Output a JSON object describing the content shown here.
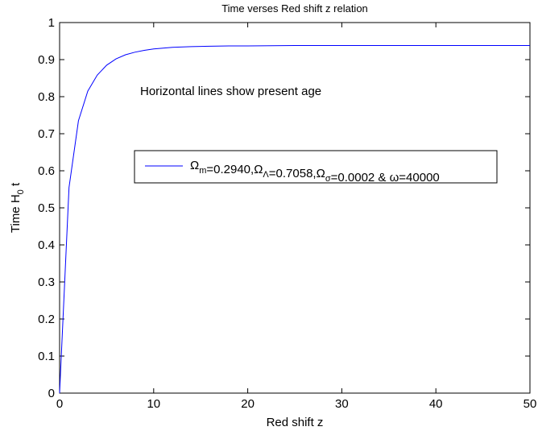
{
  "chart_data": {
    "type": "line",
    "title": "Time verses Red shift z relation",
    "xlabel": "Red shift z",
    "ylabel": {
      "main": "Time H",
      "sub": "0",
      "tail": " t"
    },
    "xlim": [
      0,
      50
    ],
    "ylim": [
      0,
      1
    ],
    "xticks": [
      0,
      10,
      20,
      30,
      40,
      50
    ],
    "xtick_labels": [
      "0",
      "10",
      "20",
      "30",
      "40",
      "50"
    ],
    "yticks": [
      0,
      0.1,
      0.2,
      0.3,
      0.4,
      0.5,
      0.6,
      0.7,
      0.8,
      0.9,
      1
    ],
    "ytick_labels": [
      "0",
      "0.1",
      "0.2",
      "0.3",
      "0.4",
      "0.5",
      "0.6",
      "0.7",
      "0.8",
      "0.9",
      "1"
    ],
    "grid": false,
    "annotation": "Horizontal lines show present age",
    "legend": {
      "placement": "center-right",
      "entries": [
        {
          "parts": [
            {
              "t": "Ω"
            },
            {
              "t": "m",
              "sub": true
            },
            {
              "t": "=0.2940,"
            },
            {
              "t": "Ω"
            },
            {
              "t": "Λ",
              "sub": true
            },
            {
              "t": "=0.7058,"
            },
            {
              "t": "Ω"
            },
            {
              "t": "σ",
              "sub": true
            },
            {
              "t": "=0.0002 & ω=40000"
            }
          ]
        }
      ]
    },
    "series": [
      {
        "color": "#0000ff",
        "x": [
          0,
          1,
          2,
          3,
          4,
          5,
          6,
          7,
          8,
          9,
          10,
          12,
          14,
          16,
          18,
          20,
          25,
          30,
          35,
          40,
          45,
          50
        ],
        "y": [
          0,
          0.555,
          0.735,
          0.815,
          0.858,
          0.885,
          0.902,
          0.913,
          0.92,
          0.925,
          0.929,
          0.933,
          0.935,
          0.936,
          0.937,
          0.937,
          0.938,
          0.938,
          0.938,
          0.938,
          0.938,
          0.938
        ]
      }
    ]
  }
}
